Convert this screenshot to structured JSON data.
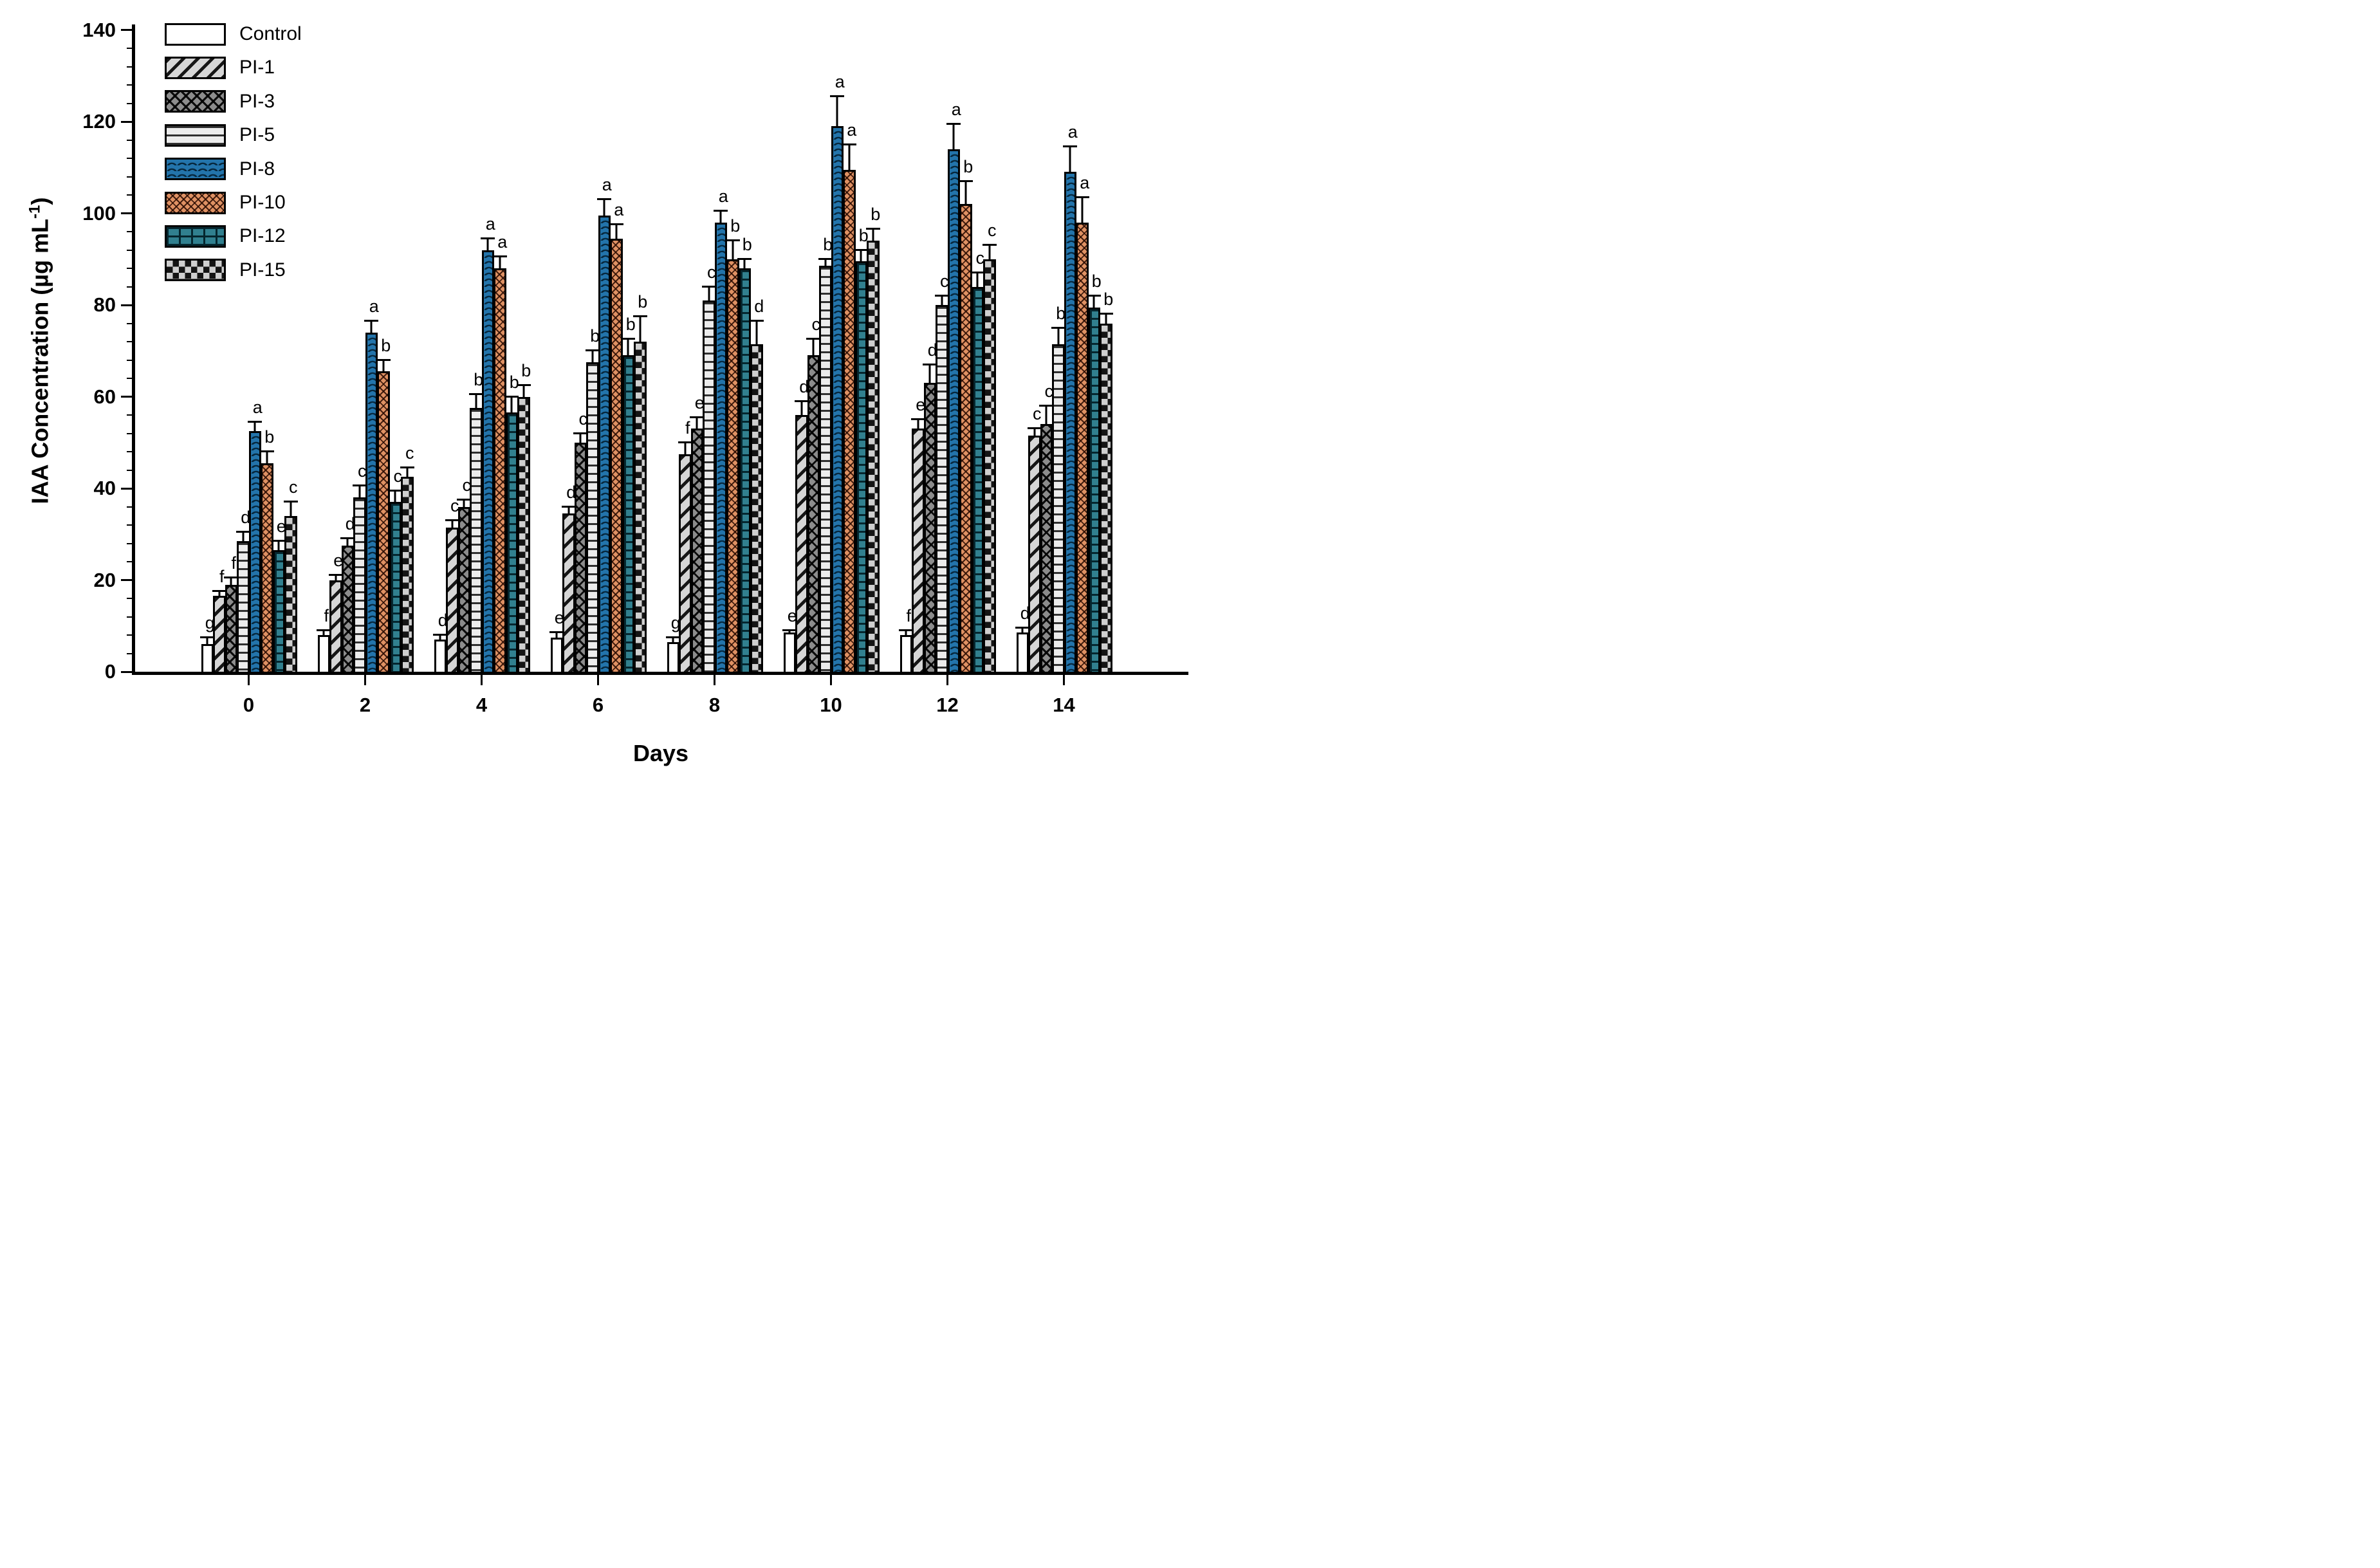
{
  "chart_data": {
    "type": "bar",
    "title": "",
    "xlabel": "Days",
    "ylabel": "IAA Concentration (µg mL-1)",
    "ylabel_parts": {
      "pre": "IAA Concentration (µg mL",
      "sup": "-1",
      "post": ")"
    },
    "ylim": [
      0,
      140
    ],
    "yticks": [
      "0",
      "20",
      "40",
      "60",
      "80",
      "100",
      "120",
      "140"
    ],
    "ytick_values": [
      0,
      20,
      40,
      60,
      80,
      100,
      120,
      140
    ],
    "minor_tick_step": 4,
    "categories": [
      "0",
      "2",
      "4",
      "6",
      "8",
      "10",
      "12",
      "14"
    ],
    "grid": "off",
    "legend_position": "inside-top-left",
    "accent_colors": {
      "pi8_blue": "#2374ab",
      "pi10_orange": "#df9163",
      "pi12_teal": "#31808f"
    },
    "series": [
      {
        "name": "Control",
        "pattern": "plain-white",
        "fill": "#ffffff",
        "values": [
          6,
          8,
          7,
          7.5,
          6.5,
          8.5,
          8,
          8.5
        ],
        "errors": [
          1.5,
          1,
          1,
          1,
          1,
          0.5,
          1,
          1
        ],
        "letters": [
          "g",
          "f",
          "d",
          "e",
          "g",
          "e",
          "f",
          "d"
        ]
      },
      {
        "name": "PI-1",
        "pattern": "diagonal-hatch",
        "fill": "#d6d6d6",
        "values": [
          16.5,
          20,
          31.5,
          34.5,
          47.5,
          56,
          53,
          51.5
        ],
        "errors": [
          1,
          1,
          1.5,
          1.5,
          2.5,
          3,
          2,
          1.5
        ],
        "letters": [
          "f",
          "e",
          "c",
          "d",
          "f",
          "d",
          "e",
          "c"
        ]
      },
      {
        "name": "PI-3",
        "pattern": "diamond-crosshatch",
        "fill": "#8c8c8c",
        "values": [
          19,
          27.5,
          36,
          50,
          53,
          69,
          63,
          54
        ],
        "errors": [
          1.5,
          1.5,
          1.5,
          2,
          2.5,
          3.5,
          4,
          4
        ],
        "letters": [
          "f",
          "d",
          "c",
          "c",
          "e",
          "c",
          "d",
          "c"
        ]
      },
      {
        "name": "PI-5",
        "pattern": "horizontal-lines",
        "fill": "#ececec",
        "values": [
          28.5,
          38,
          57.5,
          67.5,
          81,
          88.5,
          80,
          71.5
        ],
        "errors": [
          2,
          2.5,
          3,
          2.5,
          3,
          1.5,
          2,
          3.5
        ],
        "letters": [
          "d",
          "c",
          "b",
          "b",
          "c",
          "b",
          "c",
          "b"
        ]
      },
      {
        "name": "PI-8",
        "pattern": "waves",
        "fill": "#2374ab",
        "values": [
          52.5,
          74,
          92,
          99.5,
          98,
          119,
          114,
          109
        ],
        "errors": [
          2,
          2.5,
          2.5,
          3.5,
          2.5,
          6.5,
          5.5,
          5.5
        ],
        "letters": [
          "a",
          "a",
          "a",
          "a",
          "a",
          "a",
          "a",
          "a"
        ]
      },
      {
        "name": "PI-10",
        "pattern": "fine-diagonal-crosshatch",
        "fill": "#df9163",
        "values": [
          45.5,
          65.5,
          88,
          94.5,
          90,
          109.5,
          102,
          98
        ],
        "errors": [
          2.5,
          2.5,
          2.5,
          3,
          4,
          5.5,
          5,
          5.5
        ],
        "letters": [
          "b",
          "b",
          "a",
          "a",
          "b",
          "a",
          "b",
          "a"
        ]
      },
      {
        "name": "PI-12",
        "pattern": "bricks",
        "fill": "#31808f",
        "values": [
          26.5,
          37,
          56.5,
          69,
          88,
          89.5,
          84,
          79.5
        ],
        "errors": [
          2,
          2.5,
          3.5,
          3.5,
          2,
          2.5,
          3,
          2.5
        ],
        "letters": [
          "e",
          "c",
          "b",
          "b",
          "b",
          "b",
          "c",
          "b"
        ]
      },
      {
        "name": "PI-15",
        "pattern": "checkerboard",
        "fill": "#cfcfcf",
        "values": [
          34,
          42.5,
          60,
          72,
          71.5,
          94,
          90,
          76
        ],
        "errors": [
          3,
          2,
          2.5,
          5.5,
          5,
          2.5,
          3,
          2
        ],
        "letters": [
          "c",
          "c",
          "b",
          "b",
          "d",
          "b",
          "c",
          "b"
        ]
      }
    ]
  }
}
